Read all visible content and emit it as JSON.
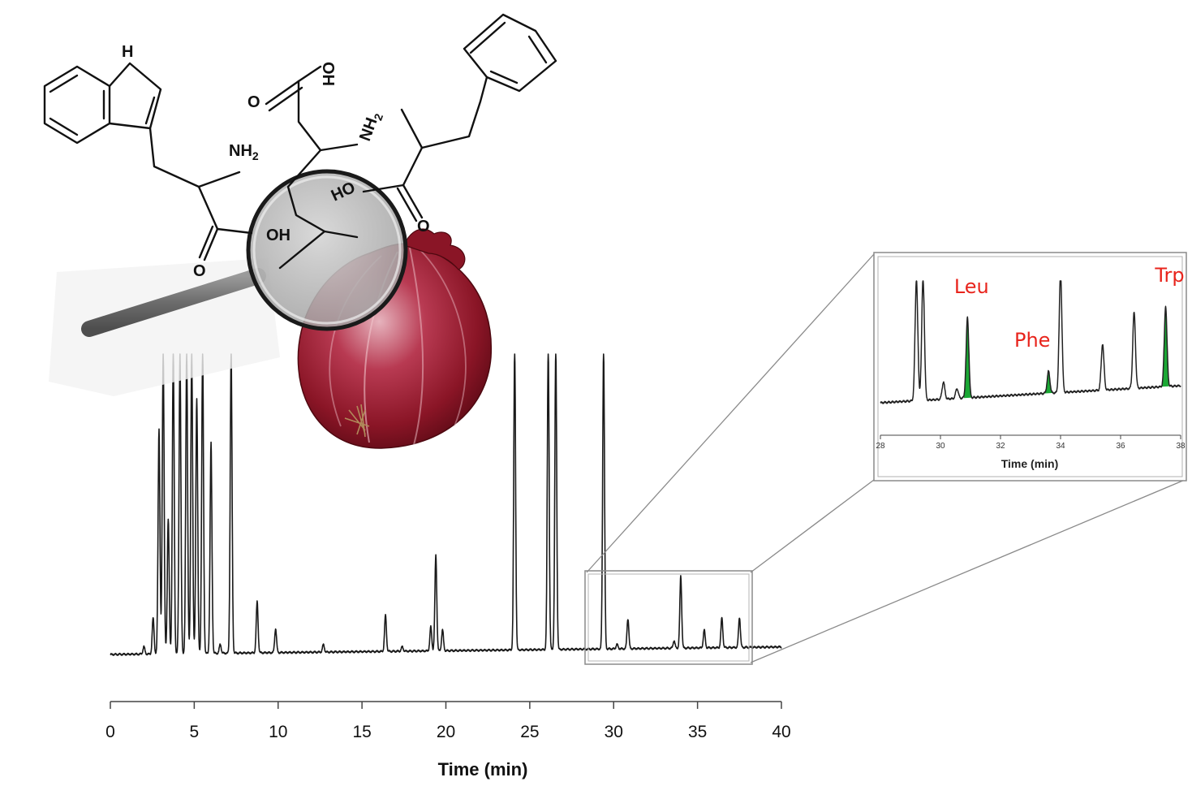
{
  "chart_data": [
    {
      "type": "line",
      "title": "",
      "xlabel": "Time (min)",
      "ylabel": "",
      "xlim": [
        0,
        40
      ],
      "xticks": [
        0,
        5,
        10,
        15,
        20,
        25,
        30,
        35,
        40
      ],
      "ylim": [
        0,
        100
      ],
      "grid": false,
      "series": [
        {
          "peaks": [
            {
              "t": 2.0,
              "h": 2.5
            },
            {
              "t": 2.55,
              "h": 12
            },
            {
              "t": 2.9,
              "h": 75
            },
            {
              "t": 3.15,
              "h": 100
            },
            {
              "t": 3.45,
              "h": 45
            },
            {
              "t": 3.75,
              "h": 100
            },
            {
              "t": 4.15,
              "h": 100
            },
            {
              "t": 4.55,
              "h": 100
            },
            {
              "t": 4.85,
              "h": 100
            },
            {
              "t": 5.15,
              "h": 85
            },
            {
              "t": 5.5,
              "h": 100
            },
            {
              "t": 6.0,
              "h": 70
            },
            {
              "t": 6.55,
              "h": 3
            },
            {
              "t": 7.2,
              "h": 100
            },
            {
              "t": 8.75,
              "h": 17
            },
            {
              "t": 9.85,
              "h": 8
            },
            {
              "t": 12.7,
              "h": 2.5
            },
            {
              "t": 16.4,
              "h": 12
            },
            {
              "t": 17.4,
              "h": 1.5
            },
            {
              "t": 19.1,
              "h": 8
            },
            {
              "t": 19.4,
              "h": 32
            },
            {
              "t": 19.8,
              "h": 7
            },
            {
              "t": 24.1,
              "h": 100
            },
            {
              "t": 26.1,
              "h": 100
            },
            {
              "t": 26.55,
              "h": 100
            },
            {
              "t": 29.4,
              "h": 100
            },
            {
              "t": 30.2,
              "h": 1.5
            },
            {
              "t": 30.85,
              "h": 10
            },
            {
              "t": 33.6,
              "h": 2.5
            },
            {
              "t": 34.0,
              "h": 24
            },
            {
              "t": 35.4,
              "h": 6
            },
            {
              "t": 36.45,
              "h": 10
            },
            {
              "t": 37.5,
              "h": 10
            }
          ]
        }
      ]
    },
    {
      "type": "line",
      "title": "",
      "xlabel": "Time (min)",
      "ylabel": "",
      "xlim": [
        28,
        38
      ],
      "xticks": [
        28,
        30,
        32,
        34,
        36,
        38
      ],
      "ylim": [
        0,
        100
      ],
      "grid": false,
      "series": [
        {
          "peaks": [
            {
              "t": 29.2,
              "h": 100
            },
            {
              "t": 29.42,
              "h": 100
            },
            {
              "t": 30.1,
              "h": 14
            },
            {
              "t": 30.55,
              "h": 8
            },
            {
              "t": 30.9,
              "h": 66
            },
            {
              "t": 33.6,
              "h": 18
            },
            {
              "t": 34.0,
              "h": 100
            },
            {
              "t": 35.4,
              "h": 38
            },
            {
              "t": 36.45,
              "h": 62
            },
            {
              "t": 37.5,
              "h": 66
            }
          ]
        }
      ],
      "annotations": [
        {
          "text": "Leu",
          "t": 30.9,
          "color": "#e8241c",
          "highlight": "#1aa834"
        },
        {
          "text": "Phe",
          "t": 33.6,
          "color": "#e8241c",
          "highlight": "#1aa834"
        },
        {
          "text": "Trp",
          "t": 37.5,
          "color": "#e8241c",
          "highlight": "#1aa834"
        }
      ]
    }
  ],
  "structures": {
    "labels": [
      "H",
      "NH2",
      "OH",
      "O",
      "O",
      "OH",
      "NH2",
      "HO",
      "O"
    ]
  },
  "colors": {
    "trace": "#1a1a1a",
    "inset_trace": "#222222",
    "label_red": "#e8241c",
    "peak_fill": "#1aa834",
    "onion_dark": "#6e0f1c",
    "onion_mid": "#a61e34",
    "onion_light": "#d9a2ad",
    "lens_glass": "#c4c4c4",
    "handle": "#7a7a7a"
  }
}
